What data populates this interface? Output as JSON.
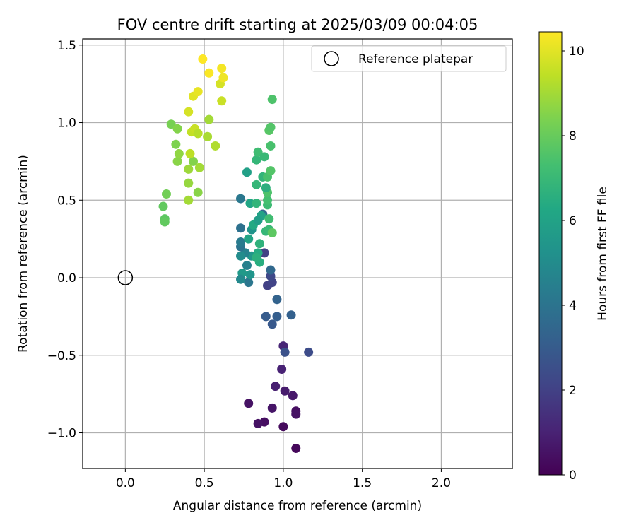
{
  "chart_data": {
    "type": "scatter",
    "title": "FOV centre drift starting at 2025/03/09 00:04:05",
    "xlabel": "Angular distance from reference (arcmin)",
    "ylabel": "Rotation from reference (arcmin)",
    "xlim": [
      -0.27,
      2.45
    ],
    "ylim": [
      -1.23,
      1.54
    ],
    "xticks": [
      0.0,
      0.5,
      1.0,
      1.5,
      2.0
    ],
    "xtick_labels": [
      "0.0",
      "0.5",
      "1.0",
      "1.5",
      "2.0"
    ],
    "yticks": [
      -1.0,
      -0.5,
      0.0,
      0.5,
      1.0,
      1.5
    ],
    "ytick_labels": [
      "−1.0",
      "−0.5",
      "0.0",
      "0.5",
      "1.0",
      "1.5"
    ],
    "grid": true,
    "legend": {
      "placement": "top-right",
      "entries": [
        "Reference platepar"
      ]
    },
    "reference_point": {
      "name": "Reference platepar",
      "x": 0.0,
      "y": 0.0,
      "marker": "open-circle"
    },
    "colorbar": {
      "label": "Hours from first FF file",
      "range": [
        0,
        10.45
      ],
      "ticks": [
        0,
        2,
        4,
        6,
        8,
        10
      ],
      "tick_labels": [
        "0",
        "2",
        "4",
        "6",
        "8",
        "10"
      ],
      "colormap": "viridis"
    },
    "series": [
      {
        "name": "Reference platepar",
        "points": [
          [
            1.08,
            -1.1,
            0.2
          ],
          [
            1.0,
            -0.96,
            0.3
          ],
          [
            0.88,
            -0.93,
            0.4
          ],
          [
            0.84,
            -0.94,
            0.5
          ],
          [
            1.08,
            -0.86,
            0.4
          ],
          [
            1.08,
            -0.88,
            0.5
          ],
          [
            0.93,
            -0.84,
            0.6
          ],
          [
            0.78,
            -0.81,
            0.5
          ],
          [
            1.06,
            -0.76,
            0.7
          ],
          [
            1.01,
            -0.73,
            0.8
          ],
          [
            0.95,
            -0.7,
            0.9
          ],
          [
            0.99,
            -0.59,
            1.0
          ],
          [
            1.0,
            -0.44,
            1.1
          ],
          [
            1.16,
            -0.48,
            2.4
          ],
          [
            1.01,
            -0.48,
            2.6
          ],
          [
            0.93,
            -0.3,
            2.9
          ],
          [
            0.89,
            -0.25,
            3.0
          ],
          [
            0.96,
            -0.25,
            3.1
          ],
          [
            1.05,
            -0.24,
            3.2
          ],
          [
            0.96,
            -0.14,
            3.3
          ],
          [
            0.9,
            -0.05,
            2.0
          ],
          [
            0.93,
            -0.03,
            2.1
          ],
          [
            0.92,
            0.01,
            2.3
          ],
          [
            0.92,
            0.05,
            3.5
          ],
          [
            0.88,
            0.16,
            2.0
          ],
          [
            0.78,
            -0.03,
            4.1
          ],
          [
            0.79,
            0.02,
            5.4
          ],
          [
            0.74,
            0.03,
            5.6
          ],
          [
            0.73,
            -0.01,
            4.9
          ],
          [
            0.77,
            0.08,
            4.5
          ],
          [
            0.8,
            0.14,
            5.5
          ],
          [
            0.76,
            0.16,
            4.6
          ],
          [
            0.73,
            0.14,
            5.0
          ],
          [
            0.73,
            0.2,
            4.0
          ],
          [
            0.73,
            0.23,
            4.3
          ],
          [
            0.73,
            0.32,
            3.9
          ],
          [
            0.73,
            0.51,
            4.2
          ],
          [
            0.77,
            0.68,
            5.9
          ],
          [
            0.78,
            0.25,
            6.1
          ],
          [
            0.8,
            0.31,
            5.3
          ],
          [
            0.81,
            0.34,
            6.3
          ],
          [
            0.79,
            0.48,
            6.2
          ],
          [
            0.83,
            0.48,
            6.8
          ],
          [
            0.84,
            0.16,
            6.4
          ],
          [
            0.85,
            0.1,
            6.5
          ],
          [
            0.83,
            0.13,
            6.6
          ],
          [
            0.85,
            0.22,
            6.7
          ],
          [
            0.87,
            0.41,
            3.6
          ],
          [
            0.86,
            0.4,
            6.0
          ],
          [
            0.84,
            0.37,
            5.8
          ],
          [
            0.89,
            0.3,
            6.9
          ],
          [
            0.91,
            0.31,
            7.0
          ],
          [
            0.91,
            0.38,
            7.2
          ],
          [
            0.9,
            0.47,
            7.1
          ],
          [
            0.9,
            0.5,
            7.3
          ],
          [
            0.9,
            0.55,
            7.5
          ],
          [
            0.89,
            0.58,
            6.6
          ],
          [
            0.83,
            0.6,
            6.9
          ],
          [
            0.87,
            0.65,
            6.8
          ],
          [
            0.9,
            0.65,
            7.4
          ],
          [
            0.92,
            0.69,
            7.6
          ],
          [
            0.83,
            0.76,
            6.9
          ],
          [
            0.84,
            0.81,
            7.2
          ],
          [
            0.88,
            0.78,
            7.0
          ],
          [
            0.92,
            0.85,
            7.4
          ],
          [
            0.91,
            0.95,
            7.7
          ],
          [
            0.92,
            0.97,
            7.6
          ],
          [
            0.93,
            1.15,
            7.5
          ],
          [
            0.93,
            0.29,
            7.8
          ],
          [
            0.24,
            0.46,
            7.9
          ],
          [
            0.25,
            0.38,
            7.8
          ],
          [
            0.25,
            0.36,
            7.9
          ],
          [
            0.26,
            0.54,
            8.2
          ],
          [
            0.29,
            0.99,
            8.3
          ],
          [
            0.32,
            0.86,
            8.4
          ],
          [
            0.33,
            0.96,
            8.5
          ],
          [
            0.33,
            0.75,
            8.6
          ],
          [
            0.34,
            0.8,
            8.7
          ],
          [
            0.4,
            0.61,
            8.8
          ],
          [
            0.4,
            0.7,
            8.9
          ],
          [
            0.4,
            0.5,
            9.0
          ],
          [
            0.43,
            0.75,
            8.5
          ],
          [
            0.46,
            0.55,
            8.6
          ],
          [
            0.47,
            0.71,
            9.0
          ],
          [
            0.41,
            0.8,
            9.4
          ],
          [
            0.42,
            0.94,
            9.5
          ],
          [
            0.44,
            0.96,
            9.6
          ],
          [
            0.46,
            0.93,
            9.3
          ],
          [
            0.52,
            0.91,
            9.1
          ],
          [
            0.53,
            1.02,
            9.0
          ],
          [
            0.57,
            0.85,
            9.2
          ],
          [
            0.4,
            1.07,
            9.8
          ],
          [
            0.43,
            1.17,
            10.0
          ],
          [
            0.46,
            1.2,
            10.1
          ],
          [
            0.61,
            1.14,
            9.6
          ],
          [
            0.6,
            1.25,
            9.8
          ],
          [
            0.62,
            1.29,
            10.2
          ],
          [
            0.61,
            1.35,
            10.3
          ],
          [
            0.53,
            1.32,
            10.4
          ],
          [
            0.49,
            1.41,
            10.45
          ]
        ]
      }
    ]
  }
}
